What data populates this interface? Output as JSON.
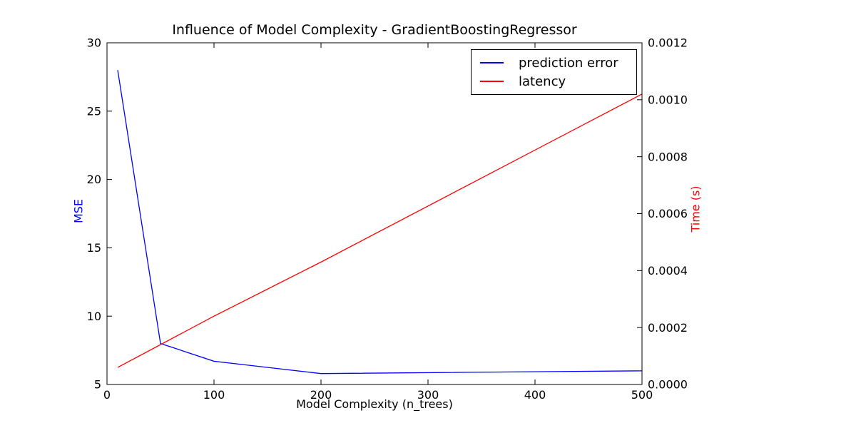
{
  "chart_data": {
    "type": "line",
    "title": "Influence of Model Complexity - GradientBoostingRegressor",
    "xlabel": "Model Complexity (n_trees)",
    "ylabel_left": "MSE",
    "ylabel_right": "Time (s)",
    "ylabel_left_color": "#0000ff",
    "ylabel_right_color": "#ff0000",
    "spine_color": "#000000",
    "tick_label_color": "#000000",
    "background_color": "#ffffff",
    "grid": false,
    "xlim": [
      0,
      500
    ],
    "xticks": [
      "0",
      "100",
      "200",
      "300",
      "400",
      "500"
    ],
    "ylim_left": [
      5,
      30
    ],
    "yticks_left": [
      "5",
      "10",
      "15",
      "20",
      "25",
      "30"
    ],
    "ylim_right": [
      0,
      0.0012
    ],
    "yticks_right": [
      "0.0000",
      "0.0002",
      "0.0004",
      "0.0006",
      "0.0008",
      "0.0010",
      "0.0012"
    ],
    "x": [
      10,
      50,
      100,
      200,
      500
    ],
    "series": [
      {
        "name": "prediction error",
        "axis": "left",
        "color": "#0000ff",
        "values": [
          28.0,
          8.0,
          6.7,
          5.8,
          6.0
        ]
      },
      {
        "name": "latency",
        "axis": "right",
        "color": "#ff0000",
        "values": [
          6e-05,
          0.00014,
          0.00024,
          0.00043,
          0.00102
        ]
      }
    ],
    "legend": {
      "position": "upper right"
    }
  }
}
